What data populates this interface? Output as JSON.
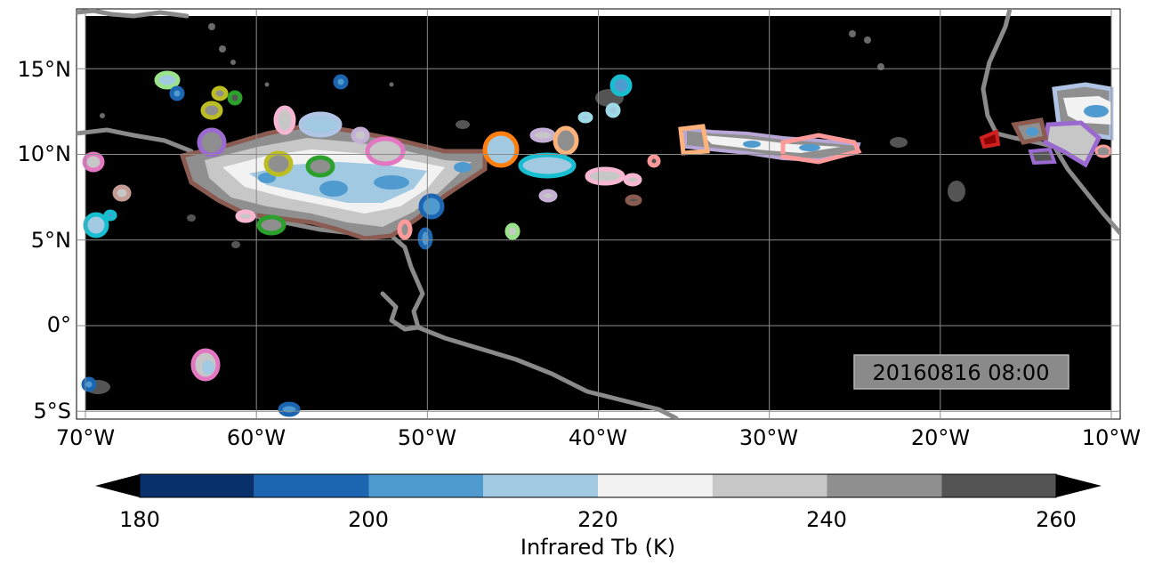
{
  "map": {
    "timestamp": "20160816 08:00",
    "lat_labels": [
      "15°N",
      "10°N",
      "5°N",
      "0°",
      "5°S"
    ],
    "lon_labels": [
      "70°W",
      "60°W",
      "50°W",
      "40°W",
      "30°W",
      "20°W",
      "10°W"
    ],
    "extent": {
      "lon": [
        -70.5,
        -10.0
      ],
      "lat": [
        -5.5,
        18.4
      ]
    },
    "background_color": "#000000",
    "coastline_color": "#8a8a8a",
    "gridlines": true
  },
  "colorbar": {
    "label": "Infrared Tb (K)",
    "tick_labels": [
      "180",
      "200",
      "220",
      "240",
      "260"
    ],
    "levels": [
      180,
      190,
      200,
      210,
      220,
      230,
      240,
      250,
      260
    ],
    "colors": [
      "#08306b",
      "#1c66b1",
      "#4f9bd0",
      "#a1c9e1",
      "#f2f2f2",
      "#c7c7c7",
      "#8f8f8f",
      "#545454"
    ],
    "extend_low_color": "#000000",
    "extend_high_color": "#000000"
  }
}
